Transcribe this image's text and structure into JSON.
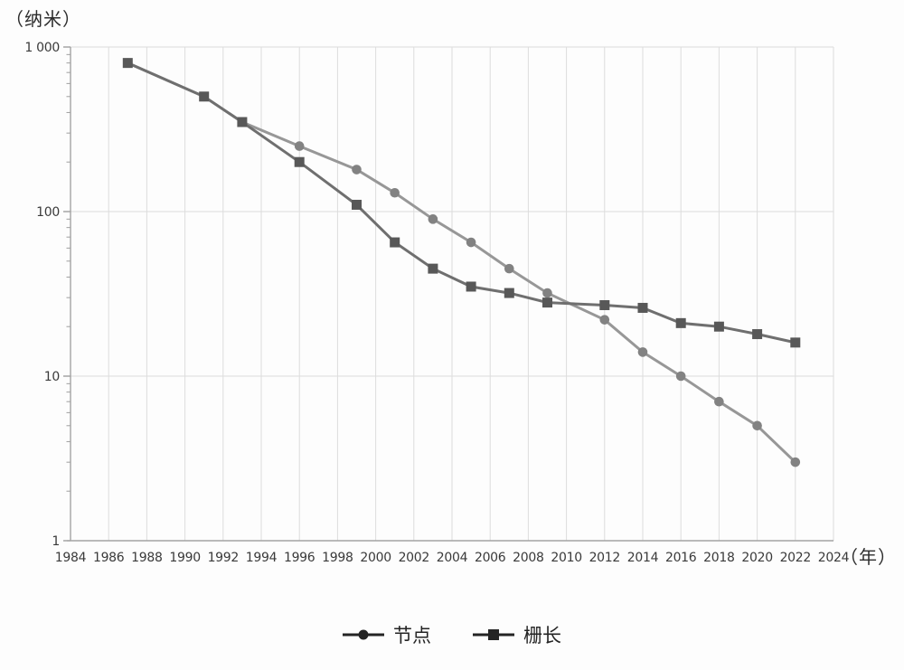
{
  "chart_data": {
    "type": "line",
    "title": "",
    "y_unit_label": "（纳米）",
    "x_unit_label": "（年）",
    "y_scale": "log",
    "x_range": [
      1984,
      2024
    ],
    "y_range": [
      1,
      1000
    ],
    "x_ticks": [
      1984,
      1986,
      1988,
      1990,
      1992,
      1994,
      1996,
      1998,
      2000,
      2002,
      2004,
      2006,
      2008,
      2010,
      2012,
      2014,
      2016,
      2018,
      2020,
      2022,
      2024
    ],
    "y_ticks": [
      {
        "value": 1000,
        "label": "1 000"
      },
      {
        "value": 100,
        "label": "100"
      },
      {
        "value": 10,
        "label": "10"
      },
      {
        "value": 1,
        "label": "1"
      }
    ],
    "grid": true,
    "legend_position": "bottom-center",
    "colors": {
      "grid": "#dcdcdc",
      "axis": "#a3a3a3",
      "tick_text": "#3a3a3a",
      "legend": "#242424",
      "background": "#fdfdfd"
    },
    "series": [
      {
        "id": "node",
        "name": "节点",
        "marker": "circle",
        "line_color": "#979797",
        "marker_color": "#828282",
        "points": [
          [
            1987,
            800
          ],
          [
            1991,
            500
          ],
          [
            1993,
            350
          ],
          [
            1996,
            250
          ],
          [
            1999,
            180
          ],
          [
            2001,
            130
          ],
          [
            2003,
            90
          ],
          [
            2005,
            65
          ],
          [
            2007,
            45
          ],
          [
            2009,
            32
          ],
          [
            2012,
            22
          ],
          [
            2014,
            14
          ],
          [
            2016,
            10
          ],
          [
            2018,
            7
          ],
          [
            2020,
            5
          ],
          [
            2022,
            3
          ]
        ]
      },
      {
        "id": "gate-length",
        "name": "栅长",
        "marker": "square",
        "line_color": "#6f6f6f",
        "marker_color": "#585858",
        "points": [
          [
            1987,
            800
          ],
          [
            1991,
            500
          ],
          [
            1993,
            350
          ],
          [
            1996,
            200
          ],
          [
            1999,
            110
          ],
          [
            2001,
            65
          ],
          [
            2003,
            45
          ],
          [
            2005,
            35
          ],
          [
            2007,
            32
          ],
          [
            2009,
            28
          ],
          [
            2012,
            27
          ],
          [
            2014,
            26
          ],
          [
            2016,
            21
          ],
          [
            2018,
            20
          ],
          [
            2020,
            18
          ],
          [
            2022,
            16
          ]
        ]
      }
    ]
  }
}
